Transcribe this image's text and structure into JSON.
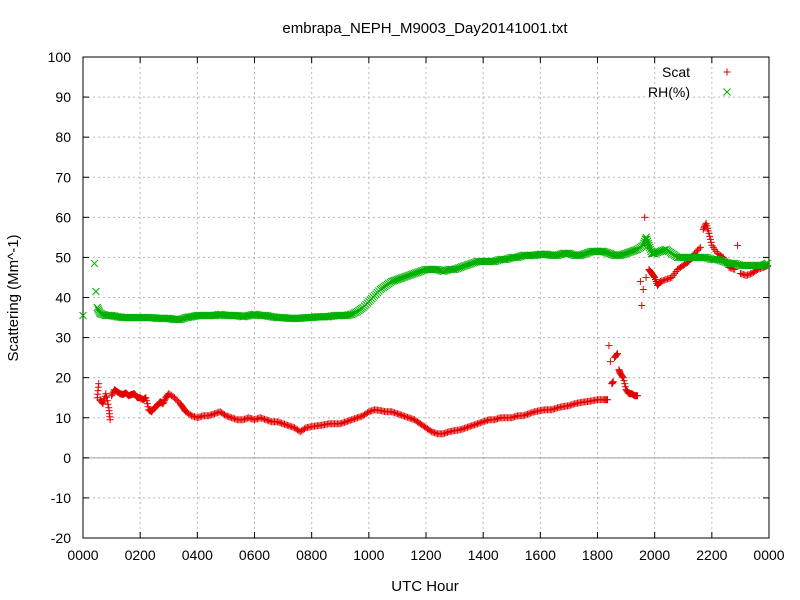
{
  "chart_data": {
    "type": "scatter",
    "title": "embrapa_NEPH_M9003_Day20141001.txt",
    "xlabel": "UTC Hour",
    "ylabel": "Scattering (Mm^-1)",
    "xlim": [
      0,
      24
    ],
    "ylim": [
      -20,
      100
    ],
    "x_tick_values": [
      0,
      2,
      4,
      6,
      8,
      10,
      12,
      14,
      16,
      18,
      20,
      22,
      24
    ],
    "x_tick_labels": [
      "0000",
      "0200",
      "0400",
      "0600",
      "0800",
      "1000",
      "1200",
      "1400",
      "1600",
      "1800",
      "2000",
      "2200",
      "0000"
    ],
    "y_ticks": [
      -20,
      -10,
      0,
      10,
      20,
      30,
      40,
      50,
      60,
      70,
      80,
      90,
      100
    ],
    "grid": true,
    "zero_line": true,
    "legend_position": "top-right",
    "series": [
      {
        "name": "Scat",
        "marker": "plus",
        "color": "#e50000",
        "points": [
          [
            0.5,
            15
          ],
          [
            0.55,
            18.5
          ],
          [
            0.6,
            14.5
          ],
          [
            0.7,
            13.5
          ],
          [
            0.8,
            16
          ],
          [
            0.9,
            12.5
          ],
          [
            0.95,
            9.5
          ],
          [
            1.0,
            15.5
          ],
          [
            1.1,
            17
          ],
          [
            1.2,
            16.5
          ],
          [
            1.3,
            16
          ],
          [
            1.4,
            15.8
          ],
          [
            1.5,
            16.2
          ],
          [
            1.6,
            15.5
          ],
          [
            1.7,
            15.8
          ],
          [
            1.8,
            16
          ],
          [
            1.9,
            15
          ],
          [
            2.0,
            15
          ],
          [
            2.1,
            14.5
          ],
          [
            2.2,
            15
          ],
          [
            2.3,
            12
          ],
          [
            2.4,
            11.5
          ],
          [
            2.5,
            12.5
          ],
          [
            2.6,
            13
          ],
          [
            2.7,
            14
          ],
          [
            2.8,
            13.5
          ],
          [
            2.9,
            15
          ],
          [
            3.0,
            16
          ],
          [
            3.2,
            15
          ],
          [
            3.4,
            13.5
          ],
          [
            3.5,
            12.5
          ],
          [
            3.6,
            11.5
          ],
          [
            3.8,
            10.5
          ],
          [
            4.0,
            10
          ],
          [
            4.2,
            10.5
          ],
          [
            4.4,
            10.5
          ],
          [
            4.6,
            11
          ],
          [
            4.8,
            11.5
          ],
          [
            5.0,
            10.5
          ],
          [
            5.2,
            10
          ],
          [
            5.4,
            9.5
          ],
          [
            5.6,
            9.5
          ],
          [
            5.8,
            10
          ],
          [
            6.0,
            9.5
          ],
          [
            6.2,
            10
          ],
          [
            6.4,
            9.5
          ],
          [
            6.6,
            9
          ],
          [
            6.8,
            9
          ],
          [
            7.0,
            8.5
          ],
          [
            7.2,
            8
          ],
          [
            7.4,
            7.5
          ],
          [
            7.6,
            6.5
          ],
          [
            7.8,
            7.5
          ],
          [
            8.0,
            7.8
          ],
          [
            8.2,
            8
          ],
          [
            8.4,
            8.2
          ],
          [
            8.6,
            8.5
          ],
          [
            8.8,
            8.5
          ],
          [
            9.0,
            8.5
          ],
          [
            9.2,
            9
          ],
          [
            9.4,
            9.5
          ],
          [
            9.6,
            10
          ],
          [
            9.8,
            10.5
          ],
          [
            10.0,
            11.5
          ],
          [
            10.2,
            12
          ],
          [
            10.4,
            11.8
          ],
          [
            10.6,
            11.5
          ],
          [
            10.8,
            11.5
          ],
          [
            11.0,
            11
          ],
          [
            11.2,
            10.5
          ],
          [
            11.4,
            10
          ],
          [
            11.6,
            9.5
          ],
          [
            11.8,
            8.5
          ],
          [
            12.0,
            7.5
          ],
          [
            12.2,
            6.5
          ],
          [
            12.4,
            6
          ],
          [
            12.6,
            6
          ],
          [
            12.8,
            6.5
          ],
          [
            13.0,
            6.8
          ],
          [
            13.2,
            7
          ],
          [
            13.4,
            7.5
          ],
          [
            13.6,
            8
          ],
          [
            13.8,
            8.5
          ],
          [
            14.0,
            9
          ],
          [
            14.2,
            9.5
          ],
          [
            14.4,
            9.5
          ],
          [
            14.6,
            10
          ],
          [
            14.8,
            10
          ],
          [
            15.0,
            10
          ],
          [
            15.2,
            10.5
          ],
          [
            15.4,
            10.5
          ],
          [
            15.6,
            11
          ],
          [
            15.8,
            11.5
          ],
          [
            16.0,
            11.8
          ],
          [
            16.2,
            12
          ],
          [
            16.4,
            12
          ],
          [
            16.6,
            12.5
          ],
          [
            16.8,
            12.8
          ],
          [
            17.0,
            13
          ],
          [
            17.2,
            13.5
          ],
          [
            17.4,
            13.8
          ],
          [
            17.6,
            14
          ],
          [
            17.8,
            14.2
          ],
          [
            18.0,
            14.5
          ],
          [
            18.2,
            14.5
          ],
          [
            18.35,
            14.5
          ],
          [
            18.4,
            28
          ],
          [
            18.45,
            24
          ],
          [
            18.5,
            18.5
          ],
          [
            18.55,
            19
          ],
          [
            18.6,
            25
          ],
          [
            18.7,
            26
          ],
          [
            18.75,
            22
          ],
          [
            18.8,
            21
          ],
          [
            18.9,
            20
          ],
          [
            19.0,
            17
          ],
          [
            19.1,
            16
          ],
          [
            19.2,
            16
          ],
          [
            19.3,
            15.5
          ],
          [
            19.4,
            15.5
          ],
          [
            19.5,
            44
          ],
          [
            19.55,
            38
          ],
          [
            19.6,
            42
          ],
          [
            19.65,
            60
          ],
          [
            19.7,
            45
          ],
          [
            19.75,
            53
          ],
          [
            19.8,
            47
          ],
          [
            19.9,
            46
          ],
          [
            20.0,
            45
          ],
          [
            20.1,
            43
          ],
          [
            20.2,
            44
          ],
          [
            20.4,
            44.5
          ],
          [
            20.6,
            45
          ],
          [
            20.8,
            47
          ],
          [
            21.0,
            48
          ],
          [
            21.2,
            49
          ],
          [
            21.4,
            51
          ],
          [
            21.6,
            52.5
          ],
          [
            21.7,
            57
          ],
          [
            21.8,
            58.5
          ],
          [
            21.9,
            56
          ],
          [
            22.0,
            53
          ],
          [
            22.2,
            51
          ],
          [
            22.4,
            50
          ],
          [
            22.6,
            47.5
          ],
          [
            22.8,
            47
          ],
          [
            22.9,
            53
          ],
          [
            23.0,
            46
          ],
          [
            23.2,
            45.5
          ],
          [
            23.4,
            46
          ],
          [
            23.6,
            47
          ],
          [
            23.8,
            47.5
          ],
          [
            23.95,
            48
          ]
        ]
      },
      {
        "name": "RH(%)",
        "marker": "cross",
        "color": "#00b000",
        "points": [
          [
            0.0,
            35.5
          ],
          [
            0.4,
            48.5
          ],
          [
            0.45,
            41.5
          ],
          [
            0.5,
            37.5
          ],
          [
            0.6,
            36
          ],
          [
            0.8,
            35.5
          ],
          [
            1.0,
            35.5
          ],
          [
            1.2,
            35.2
          ],
          [
            1.4,
            35
          ],
          [
            1.6,
            35
          ],
          [
            1.8,
            35
          ],
          [
            2.0,
            35
          ],
          [
            2.2,
            35
          ],
          [
            2.4,
            35
          ],
          [
            2.6,
            34.8
          ],
          [
            2.8,
            34.8
          ],
          [
            3.0,
            34.8
          ],
          [
            3.2,
            34.5
          ],
          [
            3.4,
            34.5
          ],
          [
            3.6,
            35
          ],
          [
            3.8,
            35.2
          ],
          [
            4.0,
            35.5
          ],
          [
            4.2,
            35.5
          ],
          [
            4.4,
            35.5
          ],
          [
            4.6,
            35.5
          ],
          [
            4.8,
            35.8
          ],
          [
            5.0,
            35.5
          ],
          [
            5.2,
            35.5
          ],
          [
            5.4,
            35.5
          ],
          [
            5.6,
            35.2
          ],
          [
            5.8,
            35.5
          ],
          [
            6.0,
            35.8
          ],
          [
            6.2,
            35.5
          ],
          [
            6.4,
            35.5
          ],
          [
            6.6,
            35.2
          ],
          [
            6.8,
            35
          ],
          [
            7.0,
            35
          ],
          [
            7.2,
            34.8
          ],
          [
            7.4,
            34.8
          ],
          [
            7.6,
            34.8
          ],
          [
            7.8,
            35
          ],
          [
            8.0,
            35
          ],
          [
            8.2,
            35.2
          ],
          [
            8.4,
            35.2
          ],
          [
            8.6,
            35.2
          ],
          [
            8.8,
            35.5
          ],
          [
            9.0,
            35.5
          ],
          [
            9.2,
            35.5
          ],
          [
            9.4,
            35.8
          ],
          [
            9.6,
            36.5
          ],
          [
            9.8,
            37.5
          ],
          [
            10.0,
            39
          ],
          [
            10.2,
            40.5
          ],
          [
            10.4,
            42
          ],
          [
            10.6,
            43
          ],
          [
            10.8,
            44
          ],
          [
            11.0,
            44.5
          ],
          [
            11.2,
            45
          ],
          [
            11.4,
            45.5
          ],
          [
            11.6,
            46
          ],
          [
            11.8,
            46.5
          ],
          [
            12.0,
            47
          ],
          [
            12.2,
            47
          ],
          [
            12.4,
            47
          ],
          [
            12.6,
            46.5
          ],
          [
            12.8,
            47
          ],
          [
            13.0,
            47
          ],
          [
            13.2,
            47.5
          ],
          [
            13.4,
            48
          ],
          [
            13.6,
            48.5
          ],
          [
            13.8,
            49
          ],
          [
            14.0,
            49
          ],
          [
            14.2,
            49
          ],
          [
            14.4,
            49
          ],
          [
            14.6,
            49.5
          ],
          [
            14.8,
            49.5
          ],
          [
            15.0,
            50
          ],
          [
            15.2,
            50
          ],
          [
            15.4,
            50.5
          ],
          [
            15.6,
            50.5
          ],
          [
            15.8,
            50.5
          ],
          [
            16.0,
            50.8
          ],
          [
            16.2,
            50.8
          ],
          [
            16.4,
            50.5
          ],
          [
            16.6,
            50.5
          ],
          [
            16.8,
            51
          ],
          [
            17.0,
            51
          ],
          [
            17.2,
            50.5
          ],
          [
            17.4,
            50.5
          ],
          [
            17.6,
            51
          ],
          [
            17.8,
            51.5
          ],
          [
            18.0,
            51.5
          ],
          [
            18.2,
            51.5
          ],
          [
            18.4,
            51
          ],
          [
            18.6,
            50.5
          ],
          [
            18.8,
            50.5
          ],
          [
            19.0,
            51
          ],
          [
            19.2,
            51.5
          ],
          [
            19.4,
            52
          ],
          [
            19.6,
            53
          ],
          [
            19.7,
            55
          ],
          [
            19.8,
            53
          ],
          [
            19.9,
            51
          ],
          [
            20.0,
            51
          ],
          [
            20.2,
            51.5
          ],
          [
            20.4,
            52
          ],
          [
            20.6,
            51
          ],
          [
            20.8,
            50
          ],
          [
            21.0,
            50
          ],
          [
            21.2,
            50
          ],
          [
            21.4,
            50
          ],
          [
            21.6,
            50
          ],
          [
            21.8,
            50
          ],
          [
            22.0,
            49.5
          ],
          [
            22.2,
            49.5
          ],
          [
            22.4,
            49
          ],
          [
            22.6,
            48.5
          ],
          [
            22.8,
            48.5
          ],
          [
            23.0,
            48
          ],
          [
            23.2,
            48
          ],
          [
            23.4,
            48
          ],
          [
            23.6,
            48
          ],
          [
            23.8,
            48
          ],
          [
            23.95,
            48.5
          ]
        ]
      }
    ]
  }
}
